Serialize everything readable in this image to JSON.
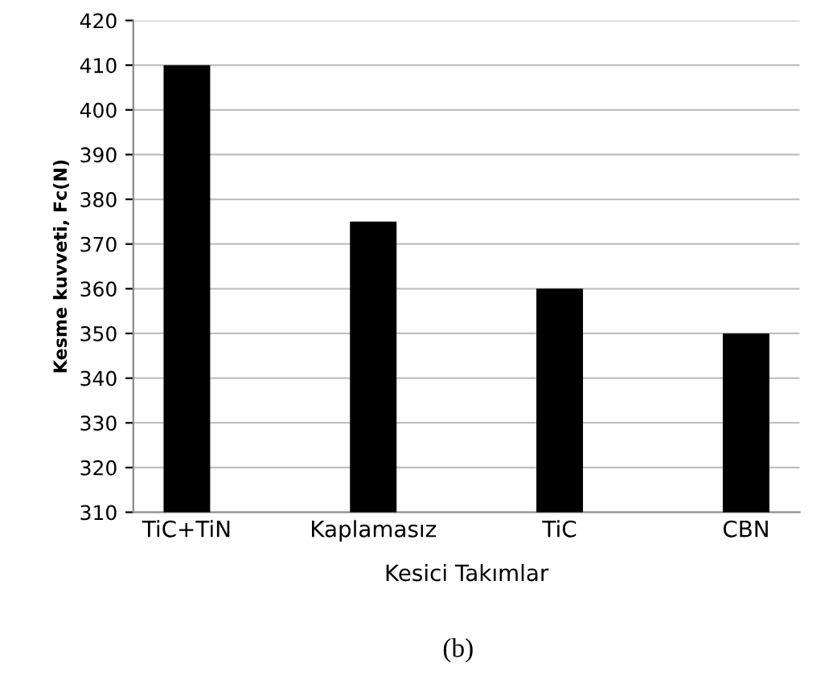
{
  "chart_data": {
    "type": "bar",
    "categories": [
      "TiC+TiN",
      "Kaplamasız",
      "TiC",
      "CBN"
    ],
    "values": [
      410,
      375,
      360,
      350
    ],
    "color": "#000000",
    "xlabel": "Kesici Takımlar",
    "ylabel": "Kesme kuvveti, Fc(N)",
    "ylim": [
      310,
      420
    ],
    "yticks": [
      310,
      320,
      330,
      340,
      350,
      360,
      370,
      380,
      390,
      400,
      410,
      420
    ],
    "grid": "y",
    "annotations": [
      "(b)"
    ]
  }
}
